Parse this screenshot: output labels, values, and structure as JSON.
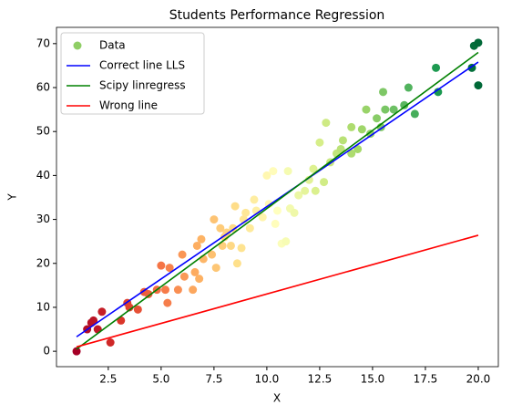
{
  "chart_data": {
    "type": "scatter",
    "title": "Students Performance Regression",
    "x_label": "X",
    "y_label": "Y",
    "xlim": [
      0.05,
      20.95
    ],
    "xticks": [
      {
        "value": 2.5,
        "label": "2.5"
      },
      {
        "value": 5,
        "label": "5.0"
      },
      {
        "value": 7.5,
        "label": "7.5"
      },
      {
        "value": 10,
        "label": "10.0"
      },
      {
        "value": 12.5,
        "label": "12.5"
      },
      {
        "value": 15,
        "label": "15.0"
      },
      {
        "value": 17.5,
        "label": "17.5"
      },
      {
        "value": 20,
        "label": "20.0"
      }
    ],
    "ylim": [
      -3.5,
      73.7
    ],
    "yticks": [
      0,
      10,
      20,
      30,
      40,
      50,
      60,
      70
    ],
    "legend": "upper left",
    "series": [
      {
        "name": "Data",
        "kind": "scatter",
        "color": "#8fce65",
        "colormap": [
          "#a50026",
          "#d73027",
          "#f46d43",
          "#fdae61",
          "#fee08b",
          "#ffffbf",
          "#d9ef8b",
          "#a6d96a",
          "#66bd63",
          "#1a9850",
          "#006837"
        ],
        "x": [
          1,
          1.5,
          1.7,
          1.8,
          2,
          2.2,
          2.6,
          3.1,
          3.4,
          3.5,
          3.9,
          4.2,
          4.4,
          4.8,
          5,
          5.2,
          5.3,
          5.4,
          5.8,
          6,
          6.1,
          6.5,
          6.6,
          6.7,
          6.8,
          6.9,
          7,
          7.4,
          7.5,
          7.6,
          7.8,
          7.9,
          8,
          8.1,
          8.3,
          8.4,
          8.5,
          8.6,
          8.8,
          8.9,
          9,
          9.2,
          9.4,
          9.5,
          9.8,
          10,
          10.1,
          10.3,
          10.4,
          10.5,
          10.7,
          10.9,
          11,
          11.1,
          11.3,
          11.5,
          11.8,
          12,
          12.2,
          12.3,
          12.5,
          12.7,
          12.8,
          13,
          13.3,
          13.5,
          13.6,
          14,
          14,
          14.3,
          14.5,
          14.7,
          14.9,
          15.2,
          15.4,
          15.5,
          15.6,
          16,
          16.5,
          16.7,
          17,
          18,
          18.1,
          19.7,
          19.8,
          20,
          20
        ],
        "values": [
          0,
          5,
          6.5,
          7,
          5,
          9,
          2,
          7,
          11,
          10,
          9.5,
          13.5,
          13,
          14,
          19.5,
          14,
          11,
          19,
          14,
          22,
          17,
          14,
          18,
          24,
          16.5,
          25.5,
          21,
          22,
          30,
          19,
          28,
          24,
          26,
          27,
          24,
          28,
          33,
          20,
          23.5,
          30,
          31.5,
          28,
          34.5,
          32,
          30.5,
          40,
          33.5,
          41,
          29,
          32,
          24.5,
          25,
          41,
          32.5,
          31.5,
          35.5,
          36.5,
          39,
          41.5,
          36.5,
          47.5,
          38.5,
          52,
          43,
          45,
          46,
          48,
          51,
          45,
          46,
          50.5,
          55,
          49.5,
          53,
          51,
          59,
          55,
          55,
          56,
          60,
          54,
          64.5,
          59,
          64.5,
          69.5,
          70.2,
          60.5
        ]
      },
      {
        "name": "Correct line LLS",
        "kind": "line",
        "color": "#0000ff",
        "x": [
          1,
          20
        ],
        "values": [
          3.3,
          65.8
        ]
      },
      {
        "name": "Scipy linregress",
        "kind": "line",
        "color": "#008000",
        "x": [
          1,
          20
        ],
        "values": [
          0.5,
          68
        ]
      },
      {
        "name": "Wrong line",
        "kind": "line",
        "color": "#ff0000",
        "x": [
          1,
          20
        ],
        "values": [
          1,
          26.4
        ]
      }
    ]
  }
}
